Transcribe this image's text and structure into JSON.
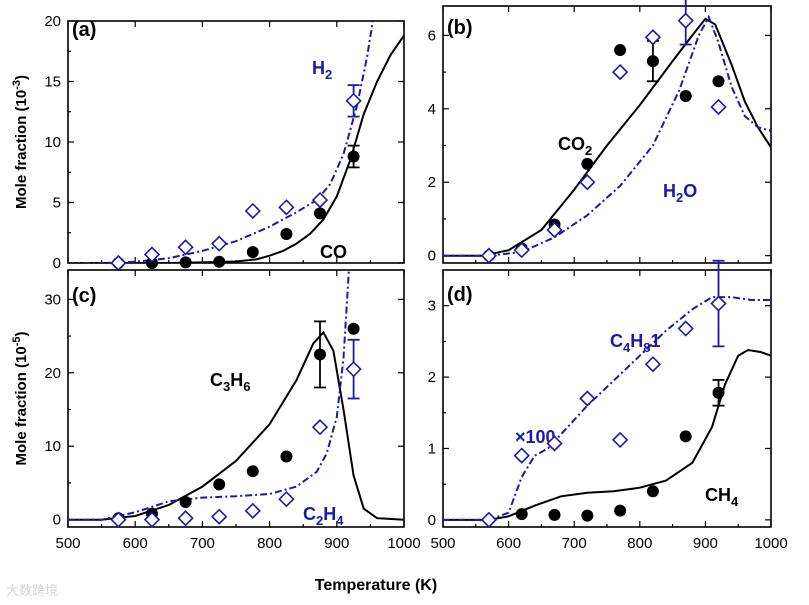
{
  "colors": {
    "black": "#000000",
    "blue": "#1a1aa6"
  },
  "x_axis_label": "Temperature (K)",
  "watermark": "大数跨境",
  "chart_data": [
    {
      "panel": "(a)",
      "type": "line+scatter",
      "ylabel": "Mole fraction (10",
      "ylabel_exp": "-3",
      "ylabel_end": ")",
      "xlim": [
        500,
        1000
      ],
      "ylim": [
        0,
        20
      ],
      "xticks": [
        500,
        600,
        700,
        800,
        900,
        1000
      ],
      "yticks": [
        0,
        5,
        10,
        15,
        20
      ],
      "series": [
        {
          "name": "CO",
          "label_main": "CO",
          "label_sub": "",
          "label_tail": "",
          "color": "black",
          "model": {
            "style": "solid",
            "points": [
              [
                500,
                0
              ],
              [
                550,
                0
              ],
              [
                600,
                0
              ],
              [
                650,
                0
              ],
              [
                700,
                0.05
              ],
              [
                750,
                0.12
              ],
              [
                780,
                0.3
              ],
              [
                800,
                0.6
              ],
              [
                820,
                1.0
              ],
              [
                840,
                1.6
              ],
              [
                860,
                2.4
              ],
              [
                880,
                3.6
              ],
              [
                900,
                5.5
              ],
              [
                920,
                8.5
              ],
              [
                940,
                12.3
              ],
              [
                960,
                15.0
              ],
              [
                980,
                17.2
              ],
              [
                1000,
                18.8
              ]
            ]
          },
          "exp": {
            "marker": "filled-circle",
            "points": [
              [
                575,
                0
              ],
              [
                625,
                0
              ],
              [
                675,
                0.05
              ],
              [
                725,
                0.1
              ],
              [
                775,
                0.9
              ],
              [
                825,
                2.4
              ],
              [
                875,
                4.1
              ],
              [
                925,
                8.8
              ]
            ],
            "errorbars": [
              {
                "x": 925,
                "y": 8.8,
                "err": 0.9
              }
            ]
          }
        },
        {
          "name": "H2",
          "label_main": "H",
          "label_sub": "2",
          "label_tail": "",
          "color": "blue",
          "model": {
            "style": "dashdot",
            "points": [
              [
                500,
                0
              ],
              [
                550,
                0
              ],
              [
                600,
                0.1
              ],
              [
                650,
                0.4
              ],
              [
                700,
                1.0
              ],
              [
                750,
                1.8
              ],
              [
                800,
                3.0
              ],
              [
                840,
                4.2
              ],
              [
                870,
                5.2
              ],
              [
                890,
                6.5
              ],
              [
                910,
                9.0
              ],
              [
                930,
                13.0
              ],
              [
                945,
                17.0
              ],
              [
                955,
                20.5
              ]
            ]
          },
          "exp": {
            "marker": "open-diamond",
            "points": [
              [
                575,
                0
              ],
              [
                625,
                0.7
              ],
              [
                675,
                1.3
              ],
              [
                725,
                1.6
              ],
              [
                775,
                4.3
              ],
              [
                825,
                4.6
              ],
              [
                875,
                5.2
              ],
              [
                925,
                13.4
              ]
            ],
            "errorbars": [
              {
                "x": 925,
                "y": 13.4,
                "err": 1.3
              }
            ]
          }
        }
      ]
    },
    {
      "panel": "(b)",
      "type": "line+scatter",
      "ylabel": "",
      "xlim": [
        500,
        1000
      ],
      "ylim": [
        -0.2,
        6.8
      ],
      "xticks": [
        500,
        600,
        700,
        800,
        900,
        1000
      ],
      "yticks": [
        0,
        2,
        4,
        6
      ],
      "series": [
        {
          "name": "CO2",
          "label_main": "CO",
          "label_sub": "2",
          "label_tail": "",
          "color": "black",
          "model": {
            "style": "solid",
            "points": [
              [
                500,
                0
              ],
              [
                560,
                0
              ],
              [
                600,
                0.15
              ],
              [
                650,
                0.7
              ],
              [
                700,
                1.8
              ],
              [
                750,
                3.0
              ],
              [
                800,
                4.1
              ],
              [
                850,
                5.3
              ],
              [
                880,
                6.0
              ],
              [
                900,
                6.45
              ],
              [
                915,
                6.3
              ],
              [
                940,
                5.2
              ],
              [
                960,
                4.2
              ],
              [
                980,
                3.5
              ],
              [
                1000,
                2.95
              ]
            ]
          },
          "exp": {
            "marker": "filled-circle",
            "points": [
              [
                570,
                0
              ],
              [
                620,
                0.2
              ],
              [
                670,
                0.85
              ],
              [
                720,
                2.5
              ],
              [
                770,
                5.6
              ],
              [
                820,
                5.3
              ],
              [
                870,
                4.35
              ],
              [
                920,
                4.75
              ]
            ],
            "errorbars": [
              {
                "x": 820,
                "y": 5.3,
                "err": 0.55
              }
            ]
          }
        },
        {
          "name": "H2O",
          "label_main": "H",
          "label_sub": "2",
          "label_tail": "O",
          "color": "blue",
          "model": {
            "style": "dashdot",
            "points": [
              [
                500,
                0
              ],
              [
                570,
                0
              ],
              [
                620,
                0.1
              ],
              [
                670,
                0.5
              ],
              [
                720,
                1.1
              ],
              [
                770,
                1.9
              ],
              [
                820,
                3.0
              ],
              [
                860,
                4.5
              ],
              [
                890,
                6.0
              ],
              [
                905,
                6.5
              ],
              [
                920,
                5.8
              ],
              [
                940,
                4.6
              ],
              [
                960,
                3.8
              ],
              [
                980,
                3.5
              ],
              [
                1000,
                3.4
              ]
            ]
          },
          "exp": {
            "marker": "open-diamond",
            "points": [
              [
                570,
                0
              ],
              [
                620,
                0.15
              ],
              [
                670,
                0.7
              ],
              [
                720,
                2.0
              ],
              [
                770,
                5.0
              ],
              [
                820,
                5.95
              ],
              [
                870,
                6.4
              ],
              [
                920,
                4.05
              ]
            ],
            "errorbars": [
              {
                "x": 870,
                "y": 6.4,
                "err": 0.65
              }
            ]
          }
        }
      ]
    },
    {
      "panel": "(c)",
      "type": "line+scatter",
      "ylabel": "Mole fraction (10",
      "ylabel_exp": "-5",
      "ylabel_end": ")",
      "xlim": [
        500,
        1000
      ],
      "ylim": [
        -1,
        34
      ],
      "xticks": [
        500,
        600,
        700,
        800,
        900,
        1000
      ],
      "yticks": [
        0,
        10,
        20,
        30
      ],
      "series": [
        {
          "name": "C3H6",
          "label_main": "C",
          "label_sub": "3",
          "label_tail": "H",
          "label_sub2": "6",
          "color": "black",
          "model": {
            "style": "solid",
            "points": [
              [
                500,
                0
              ],
              [
                550,
                0
              ],
              [
                600,
                0.5
              ],
              [
                650,
                2.0
              ],
              [
                700,
                4.5
              ],
              [
                750,
                8.0
              ],
              [
                800,
                13.0
              ],
              [
                840,
                19.0
              ],
              [
                865,
                24.0
              ],
              [
                880,
                25.5
              ],
              [
                895,
                23.0
              ],
              [
                910,
                15.0
              ],
              [
                925,
                6.0
              ],
              [
                940,
                1.5
              ],
              [
                960,
                0.2
              ],
              [
                1000,
                0
              ]
            ]
          },
          "exp": {
            "marker": "filled-circle",
            "points": [
              [
                575,
                0.2
              ],
              [
                625,
                0.8
              ],
              [
                675,
                2.4
              ],
              [
                725,
                4.8
              ],
              [
                775,
                6.6
              ],
              [
                825,
                8.6
              ],
              [
                875,
                22.5
              ],
              [
                925,
                26.0
              ]
            ],
            "errorbars": [
              {
                "x": 875,
                "y": 22.5,
                "err": 4.5
              }
            ]
          }
        },
        {
          "name": "C2H4",
          "label_main": "C",
          "label_sub": "2",
          "label_tail": "H",
          "label_sub2": "4",
          "color": "blue",
          "model": {
            "style": "dashdot",
            "points": [
              [
                500,
                0
              ],
              [
                550,
                0
              ],
              [
                600,
                1.0
              ],
              [
                650,
                2.5
              ],
              [
                700,
                3.0
              ],
              [
                750,
                3.2
              ],
              [
                800,
                3.5
              ],
              [
                840,
                4.5
              ],
              [
                870,
                6.5
              ],
              [
                885,
                9.0
              ],
              [
                900,
                14.0
              ],
              [
                910,
                22.0
              ],
              [
                918,
                34.0
              ]
            ]
          },
          "exp": {
            "marker": "open-diamond",
            "points": [
              [
                575,
                0
              ],
              [
                625,
                0
              ],
              [
                675,
                0.2
              ],
              [
                725,
                0.4
              ],
              [
                775,
                1.2
              ],
              [
                825,
                2.8
              ],
              [
                875,
                12.6
              ],
              [
                925,
                20.5
              ]
            ],
            "errorbars": [
              {
                "x": 925,
                "y": 20.5,
                "err": 4.0
              }
            ]
          }
        }
      ]
    },
    {
      "panel": "(d)",
      "type": "line+scatter",
      "ylabel": "",
      "xlim": [
        500,
        1000
      ],
      "ylim": [
        -0.1,
        3.5
      ],
      "xticks": [
        500,
        600,
        700,
        800,
        900,
        1000
      ],
      "yticks": [
        0,
        1,
        2,
        3
      ],
      "multiplier": "×100",
      "series": [
        {
          "name": "CH4",
          "label_main": "CH",
          "label_sub": "4",
          "label_tail": "",
          "color": "black",
          "model": {
            "style": "solid",
            "points": [
              [
                500,
                0
              ],
              [
                570,
                0
              ],
              [
                600,
                0.05
              ],
              [
                640,
                0.2
              ],
              [
                680,
                0.33
              ],
              [
                720,
                0.38
              ],
              [
                760,
                0.4
              ],
              [
                800,
                0.45
              ],
              [
                840,
                0.55
              ],
              [
                880,
                0.8
              ],
              [
                910,
                1.3
              ],
              [
                930,
                1.9
              ],
              [
                950,
                2.3
              ],
              [
                965,
                2.38
              ],
              [
                985,
                2.35
              ],
              [
                1000,
                2.3
              ]
            ]
          },
          "exp": {
            "marker": "filled-circle",
            "points": [
              [
                620,
                0.08
              ],
              [
                670,
                0.07
              ],
              [
                720,
                0.06
              ],
              [
                770,
                0.13
              ],
              [
                820,
                0.4
              ],
              [
                870,
                1.17
              ],
              [
                920,
                1.78
              ]
            ],
            "errorbars": [
              {
                "x": 920,
                "y": 1.78,
                "err": 0.18
              }
            ]
          }
        },
        {
          "name": "C4H81",
          "label_main": "C",
          "label_sub": "4",
          "label_tail": "H",
          "label_sub2": "8",
          "label_end": "1",
          "color": "blue",
          "model": {
            "style": "dashdot",
            "points": [
              [
                500,
                0
              ],
              [
                570,
                0
              ],
              [
                600,
                0.1
              ],
              [
                620,
                0.6
              ],
              [
                640,
                0.9
              ],
              [
                660,
                1.0
              ],
              [
                690,
                1.3
              ],
              [
                720,
                1.6
              ],
              [
                760,
                1.95
              ],
              [
                800,
                2.3
              ],
              [
                840,
                2.65
              ],
              [
                880,
                2.95
              ],
              [
                910,
                3.12
              ],
              [
                940,
                3.12
              ],
              [
                970,
                3.08
              ],
              [
                1000,
                3.08
              ]
            ]
          },
          "exp": {
            "marker": "open-diamond",
            "points": [
              [
                570,
                0
              ],
              [
                620,
                0.9
              ],
              [
                670,
                1.07
              ],
              [
                720,
                1.7
              ],
              [
                770,
                1.12
              ],
              [
                820,
                2.18
              ],
              [
                870,
                2.68
              ],
              [
                920,
                3.03
              ]
            ],
            "errorbars": [
              {
                "x": 920,
                "y": 3.03,
                "err": 0.6
              }
            ]
          }
        }
      ]
    }
  ]
}
